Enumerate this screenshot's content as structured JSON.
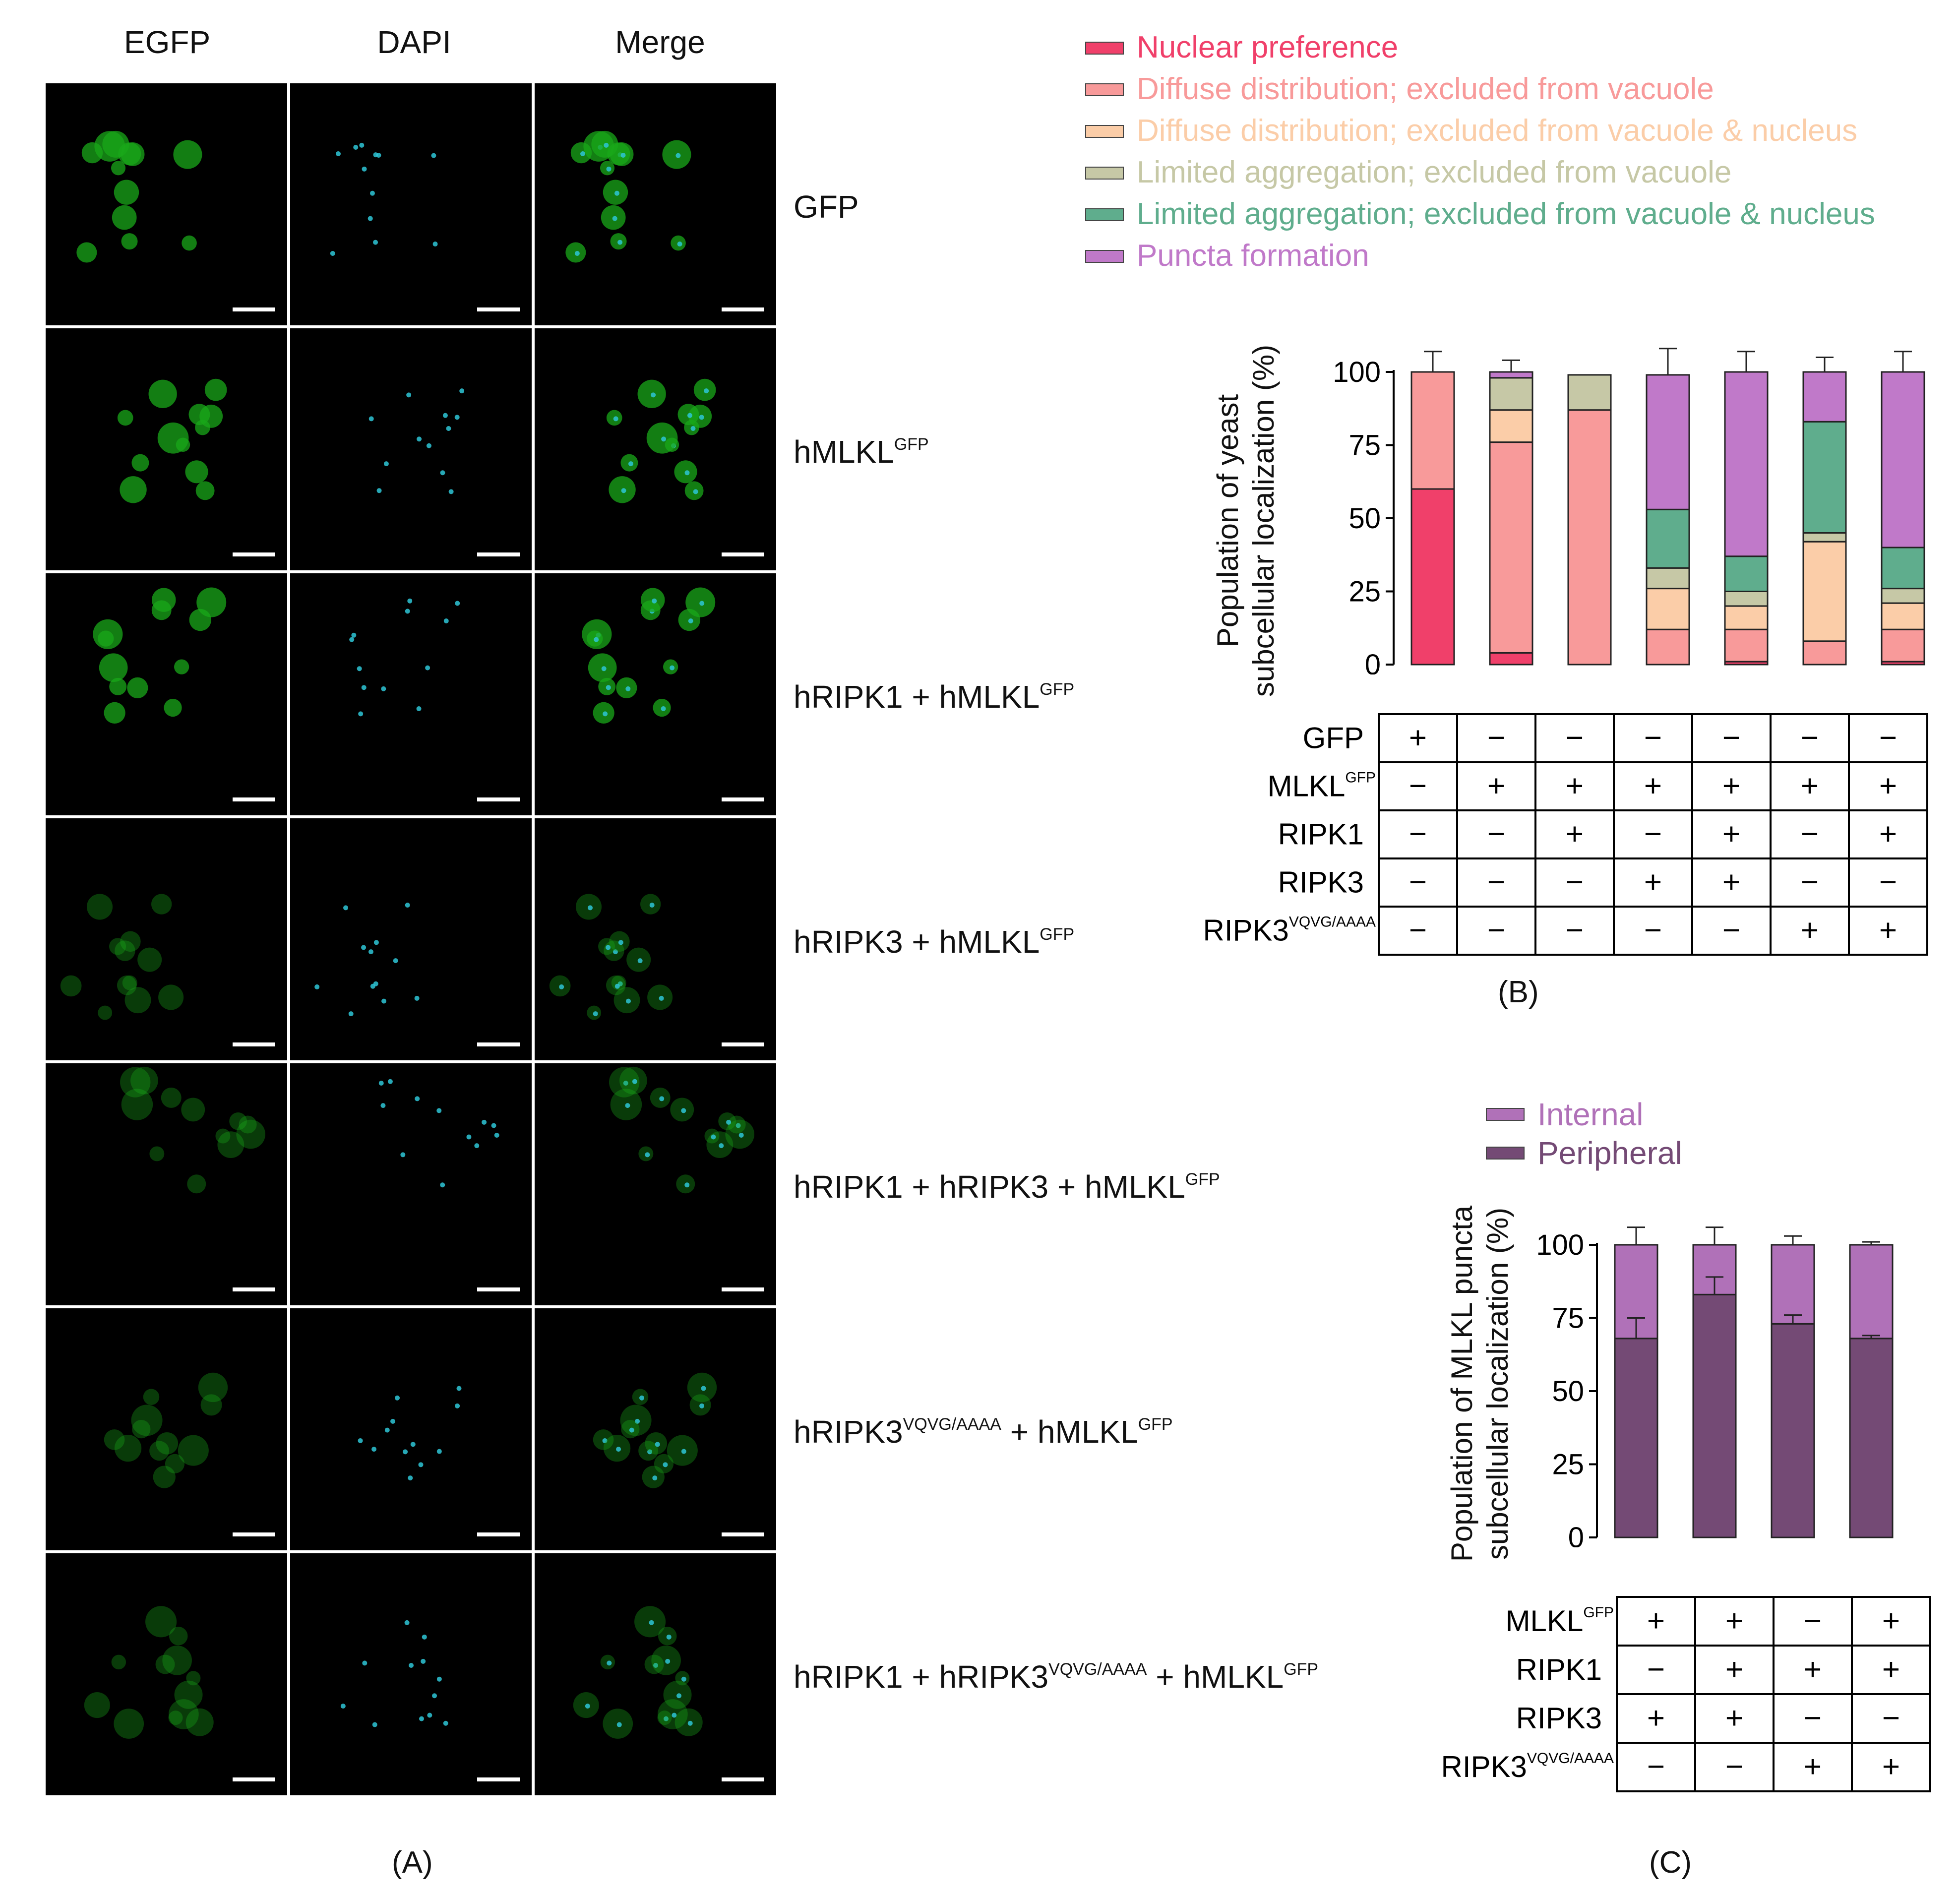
{
  "panel_a": {
    "column_headers": [
      "EGFP",
      "DAPI",
      "Merge"
    ],
    "rows": [
      {
        "label": "GFP",
        "sup": ""
      },
      {
        "label": "hMLKL",
        "sup": "GFP"
      },
      {
        "label": "hRIPK1 + hMLKL",
        "sup": "GFP"
      },
      {
        "label": "hRIPK3 + hMLKL",
        "sup": "GFP"
      },
      {
        "label": "hRIPK1 + hRIPK3 + hMLKL",
        "sup": "GFP"
      },
      {
        "label_parts": [
          "hRIPK3",
          "VQVG/AAAA",
          " + hMLKL",
          "GFP"
        ]
      },
      {
        "label_parts": [
          "hRIPK1 + hRIPK3",
          "VQVG/AAAA",
          " + hMLKL",
          "GFP"
        ]
      }
    ],
    "caption": "(A)",
    "colors": {
      "egfp": "#1aa81a",
      "dapi": "#2ec5d6",
      "background": "#000000"
    }
  },
  "panel_b": {
    "legend": [
      {
        "label": "Nuclear preference",
        "color": "#f0406a"
      },
      {
        "label": "Diffuse distribution; excluded from vacuole",
        "color": "#f89a9a"
      },
      {
        "label": "Diffuse distribution; excluded from vacuole & nucleus",
        "color": "#fbcda8"
      },
      {
        "label": "Limited aggregation; excluded from vacuole",
        "color": "#c6c8a6"
      },
      {
        "label": "Limited aggregation; excluded from vacuole & nucleus",
        "color": "#5fad8d"
      },
      {
        "label": "Puncta formation",
        "color": "#c079c9"
      }
    ],
    "ylabel_line1": "Population of yeast",
    "ylabel_line2": "subcellular localization (%)",
    "yticks": [
      "100",
      "75",
      "50",
      "25",
      "0"
    ],
    "table_rows": [
      {
        "label": "GFP",
        "sup": "",
        "values": [
          "+",
          "−",
          "−",
          "−",
          "−",
          "−",
          "−"
        ]
      },
      {
        "label": "MLKL",
        "sup": "GFP",
        "values": [
          "−",
          "+",
          "+",
          "+",
          "+",
          "+",
          "+"
        ]
      },
      {
        "label": "RIPK1",
        "sup": "",
        "values": [
          "−",
          "−",
          "+",
          "−",
          "+",
          "−",
          "+"
        ]
      },
      {
        "label": "RIPK3",
        "sup": "",
        "values": [
          "−",
          "−",
          "−",
          "+",
          "+",
          "−",
          "−"
        ]
      },
      {
        "label": "RIPK3",
        "sup": "VQVG/AAAA",
        "values": [
          "−",
          "−",
          "−",
          "−",
          "−",
          "+",
          "+"
        ]
      }
    ],
    "caption": "(B)"
  },
  "panel_c": {
    "legend": [
      {
        "label": "Internal",
        "color": "#b071b8"
      },
      {
        "label": "Peripheral",
        "color": "#744a75"
      }
    ],
    "ylabel_line1": "Population of MLKL puncta",
    "ylabel_line2": "subcellular localization (%)",
    "yticks": [
      "100",
      "75",
      "50",
      "25",
      "0"
    ],
    "table_rows": [
      {
        "label": "MLKL",
        "sup": "GFP",
        "values": [
          "+",
          "+",
          "−",
          "+"
        ]
      },
      {
        "label": "RIPK1",
        "sup": "",
        "values": [
          "−",
          "+",
          "+",
          "+"
        ]
      },
      {
        "label": "RIPK3",
        "sup": "",
        "values": [
          "+",
          "+",
          "−",
          "−"
        ]
      },
      {
        "label": "RIPK3",
        "sup": "VQVG/AAAA",
        "values": [
          "−",
          "−",
          "+",
          "+"
        ]
      }
    ],
    "caption": "(C)"
  },
  "chart_data": [
    {
      "type": "bar",
      "stacked": true,
      "ylim": [
        0,
        100
      ],
      "yticks": [
        0,
        25,
        50,
        75,
        100
      ],
      "series": [
        {
          "name": "Nuclear preference",
          "values": [
            60,
            4,
            0,
            0,
            1,
            0,
            1
          ]
        },
        {
          "name": "Diffuse distribution; excluded from vacuole",
          "values": [
            40,
            72,
            87,
            12,
            11,
            8,
            11
          ]
        },
        {
          "name": "Diffuse distribution; excluded from vacuole & nucleus",
          "values": [
            0,
            11,
            0,
            14,
            8,
            34,
            9
          ]
        },
        {
          "name": "Limited aggregation; excluded from vacuole",
          "values": [
            0,
            11,
            12,
            7,
            5,
            3,
            5
          ]
        },
        {
          "name": "Limited aggregation; excluded from vacuole & nucleus",
          "values": [
            0,
            0,
            0,
            20,
            12,
            38,
            14
          ]
        },
        {
          "name": "Puncta formation",
          "values": [
            0,
            2,
            0,
            46,
            63,
            17,
            60
          ]
        }
      ],
      "error_bars_top": [
        7,
        4,
        0,
        9,
        7,
        5,
        7
      ]
    },
    {
      "type": "bar",
      "stacked": true,
      "ylim": [
        0,
        100
      ],
      "yticks": [
        0,
        25,
        50,
        75,
        100
      ],
      "series": [
        {
          "name": "Peripheral",
          "values": [
            68,
            83,
            73,
            68
          ]
        },
        {
          "name": "Internal",
          "values": [
            32,
            17,
            27,
            32
          ]
        }
      ],
      "error_bars_top": [
        6,
        6,
        3,
        1
      ],
      "error_bars_mid": [
        7,
        6,
        3,
        1
      ]
    }
  ]
}
